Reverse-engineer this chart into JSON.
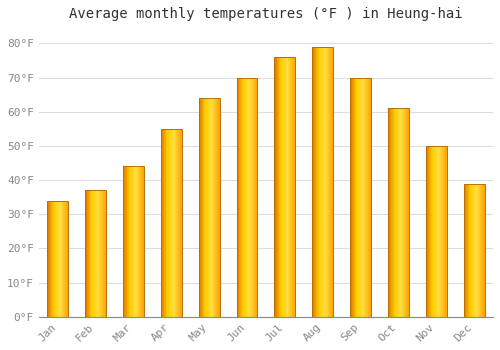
{
  "title": "Average monthly temperatures (°F ) in Heung-hai",
  "months": [
    "Jan",
    "Feb",
    "Mar",
    "Apr",
    "May",
    "Jun",
    "Jul",
    "Aug",
    "Sep",
    "Oct",
    "Nov",
    "Dec"
  ],
  "values": [
    34,
    37,
    44,
    55,
    64,
    70,
    76,
    79,
    70,
    61,
    50,
    39
  ],
  "bar_color_main": "#FFA500",
  "bar_color_light": "#FFD060",
  "bar_color_dark": "#E07800",
  "bar_edge_color": "#B87000",
  "background_color": "#FFFFFF",
  "grid_color": "#DDDDDD",
  "ylim": [
    0,
    85
  ],
  "yticks": [
    0,
    10,
    20,
    30,
    40,
    50,
    60,
    70,
    80
  ],
  "ytick_labels": [
    "0°F",
    "10°F",
    "20°F",
    "30°F",
    "40°F",
    "50°F",
    "60°F",
    "70°F",
    "80°F"
  ],
  "title_fontsize": 10,
  "tick_fontsize": 8,
  "font_family": "monospace",
  "bar_width": 0.55
}
